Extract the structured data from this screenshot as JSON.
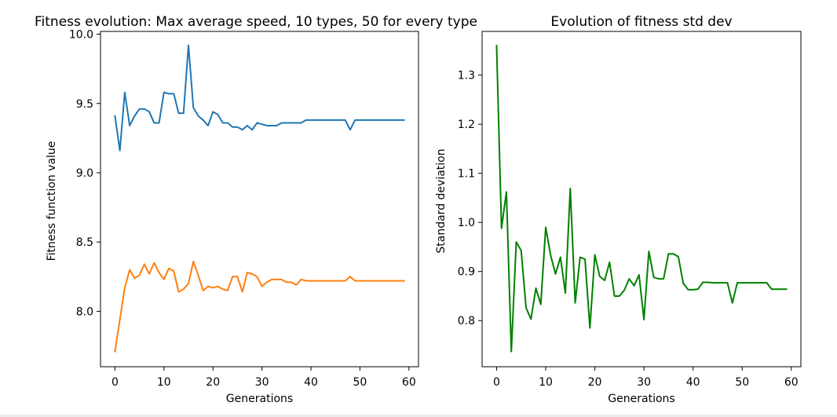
{
  "chart_data": [
    {
      "type": "line",
      "title": "Fitness evolution: Max average speed, 10 types, 50 for every type",
      "xlabel": "Generations",
      "ylabel": "Fitness function value",
      "xlim": [
        -2.95,
        61.95
      ],
      "ylim": [
        7.6,
        10.02
      ],
      "xticks": [
        0,
        10,
        20,
        30,
        40,
        50,
        60
      ],
      "yticks": [
        8.0,
        8.5,
        9.0,
        9.5,
        10.0
      ],
      "xtick_labels": [
        "0",
        "10",
        "20",
        "30",
        "40",
        "50",
        "60"
      ],
      "ytick_labels": [
        "8.0",
        "8.5",
        "9.0",
        "9.5",
        "10.0"
      ],
      "grid": false,
      "x": [
        0,
        1,
        2,
        3,
        4,
        5,
        6,
        7,
        8,
        9,
        10,
        11,
        12,
        13,
        14,
        15,
        16,
        17,
        18,
        19,
        20,
        21,
        22,
        23,
        24,
        25,
        26,
        27,
        28,
        29,
        30,
        31,
        32,
        33,
        34,
        35,
        36,
        37,
        38,
        39,
        40,
        41,
        42,
        43,
        44,
        45,
        46,
        47,
        48,
        49,
        50,
        51,
        52,
        53,
        54,
        55,
        56,
        57,
        58,
        59
      ],
      "series": [
        {
          "color": "#1f77b4",
          "values": [
            9.41,
            9.16,
            9.58,
            9.34,
            9.41,
            9.46,
            9.46,
            9.44,
            9.36,
            9.36,
            9.58,
            9.57,
            9.57,
            9.43,
            9.43,
            9.92,
            9.47,
            9.41,
            9.38,
            9.34,
            9.44,
            9.42,
            9.36,
            9.36,
            9.33,
            9.33,
            9.31,
            9.34,
            9.31,
            9.36,
            9.35,
            9.34,
            9.34,
            9.34,
            9.36,
            9.36,
            9.36,
            9.36,
            9.36,
            9.38,
            9.38,
            9.38,
            9.38,
            9.38,
            9.38,
            9.38,
            9.38,
            9.38,
            9.31,
            9.38,
            9.38,
            9.38,
            9.38,
            9.38,
            9.38,
            9.38,
            9.38,
            9.38,
            9.38,
            9.38
          ]
        },
        {
          "color": "#ff7f0e",
          "values": [
            7.71,
            7.94,
            8.17,
            8.3,
            8.24,
            8.26,
            8.34,
            8.27,
            8.35,
            8.28,
            8.23,
            8.31,
            8.29,
            8.14,
            8.16,
            8.2,
            8.36,
            8.26,
            8.15,
            8.18,
            8.17,
            8.18,
            8.16,
            8.15,
            8.25,
            8.25,
            8.14,
            8.28,
            8.27,
            8.25,
            8.18,
            8.21,
            8.23,
            8.23,
            8.23,
            8.21,
            8.21,
            8.19,
            8.23,
            8.22,
            8.22,
            8.22,
            8.22,
            8.22,
            8.22,
            8.22,
            8.22,
            8.22,
            8.25,
            8.22,
            8.22,
            8.22,
            8.22,
            8.22,
            8.22,
            8.22,
            8.22,
            8.22,
            8.22,
            8.22
          ]
        }
      ]
    },
    {
      "type": "line",
      "title": "Evolution of fitness std dev",
      "xlabel": "Generations",
      "ylabel": "Standard deviation",
      "xlim": [
        -2.95,
        61.95
      ],
      "ylim": [
        0.706,
        1.389
      ],
      "xticks": [
        0,
        10,
        20,
        30,
        40,
        50,
        60
      ],
      "yticks": [
        0.8,
        0.9,
        1.0,
        1.1,
        1.2,
        1.3
      ],
      "xtick_labels": [
        "0",
        "10",
        "20",
        "30",
        "40",
        "50",
        "60"
      ],
      "ytick_labels": [
        "0.8",
        "0.9",
        "1.0",
        "1.1",
        "1.2",
        "1.3"
      ],
      "grid": false,
      "x": [
        0,
        1,
        2,
        3,
        4,
        5,
        6,
        7,
        8,
        9,
        10,
        11,
        12,
        13,
        14,
        15,
        16,
        17,
        18,
        19,
        20,
        21,
        22,
        23,
        24,
        25,
        26,
        27,
        28,
        29,
        30,
        31,
        32,
        33,
        34,
        35,
        36,
        37,
        38,
        39,
        40,
        41,
        42,
        43,
        44,
        45,
        46,
        47,
        48,
        49,
        50,
        51,
        52,
        53,
        54,
        55,
        56,
        57,
        58,
        59
      ],
      "series": [
        {
          "color": "#008000",
          "values": [
            1.36,
            0.988,
            1.062,
            0.737,
            0.96,
            0.943,
            0.826,
            0.803,
            0.866,
            0.833,
            0.99,
            0.933,
            0.895,
            0.929,
            0.856,
            1.069,
            0.836,
            0.929,
            0.925,
            0.785,
            0.934,
            0.89,
            0.882,
            0.919,
            0.85,
            0.85,
            0.862,
            0.885,
            0.871,
            0.893,
            0.802,
            0.941,
            0.888,
            0.885,
            0.885,
            0.936,
            0.936,
            0.93,
            0.876,
            0.863,
            0.863,
            0.864,
            0.878,
            0.878,
            0.877,
            0.877,
            0.877,
            0.877,
            0.836,
            0.877,
            0.877,
            0.877,
            0.877,
            0.877,
            0.877,
            0.877,
            0.864,
            0.864,
            0.864,
            0.864
          ]
        }
      ]
    }
  ]
}
